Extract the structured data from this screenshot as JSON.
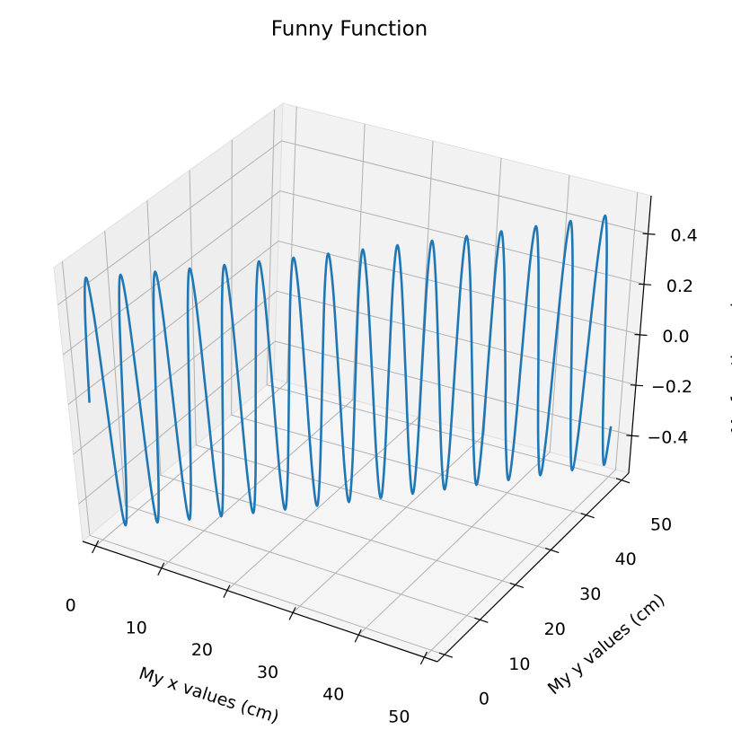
{
  "chart_data": {
    "type": "line3d",
    "title": "Funny Function",
    "xlabel": "My x values (cm)",
    "ylabel": "My y values (cm)",
    "zlabel": "My function values",
    "color": "#1f77b4",
    "grid": true,
    "xlim": [
      -2,
      52
    ],
    "ylim": [
      -2,
      52
    ],
    "zlim": [
      -0.55,
      0.55
    ],
    "xticks": [
      0,
      10,
      20,
      30,
      40,
      50
    ],
    "yticks": [
      0,
      10,
      20,
      30,
      40,
      50
    ],
    "zticks": [
      {
        "value": -0.4,
        "label": "−0.4"
      },
      {
        "value": -0.2,
        "label": "−0.2"
      },
      {
        "value": 0,
        "label": "0.0"
      },
      0.2,
      0.4
    ],
    "x": [
      0,
      0.39,
      0.79,
      1.18,
      1.57,
      1.96,
      2.36,
      2.75,
      3.14,
      3.53,
      3.93,
      4.32,
      4.71,
      5.11,
      5.5,
      5.89,
      6.28,
      6.68,
      7.07,
      7.46,
      7.85,
      8.25,
      8.64,
      9.03,
      9.42,
      9.82,
      10.21,
      10.6,
      11.0,
      11.39,
      11.78,
      12.17,
      12.57,
      12.96,
      13.35,
      13.74,
      14.14,
      14.53,
      14.92,
      15.32,
      15.71,
      16.1,
      16.49,
      16.89,
      17.28,
      17.67,
      18.06,
      18.46,
      18.85,
      19.24,
      19.63,
      20.03,
      20.42,
      20.81,
      21.21,
      21.6,
      21.99,
      22.38,
      22.78,
      23.17,
      23.56,
      23.95,
      24.35,
      24.74,
      25.13,
      25.53,
      25.92,
      26.31,
      26.7,
      27.1,
      27.49,
      27.88,
      28.27,
      28.67,
      29.06,
      29.45,
      29.85,
      30.24,
      30.63,
      31.02,
      31.42,
      31.81,
      32.2,
      32.59,
      32.99,
      33.38,
      33.77,
      34.16,
      34.56,
      34.95,
      35.34,
      35.74,
      36.13,
      36.52,
      36.91,
      37.31,
      37.7,
      38.09,
      38.48,
      38.88,
      39.27,
      39.66,
      40.06,
      40.45,
      40.84,
      41.23,
      41.63,
      42.02,
      42.41,
      42.8,
      43.2,
      43.59,
      43.98,
      44.38,
      44.77,
      45.16,
      45.55,
      45.95,
      46.34,
      46.73,
      47.12,
      47.52,
      47.91,
      48.3,
      48.69,
      49.09,
      49.48,
      49.87
    ],
    "y": [
      0,
      0.39,
      0.79,
      1.18,
      1.57,
      1.96,
      2.36,
      2.75,
      3.14,
      3.53,
      3.93,
      4.32,
      4.71,
      5.11,
      5.5,
      5.89,
      6.28,
      6.68,
      7.07,
      7.46,
      7.85,
      8.25,
      8.64,
      9.03,
      9.42,
      9.82,
      10.21,
      10.6,
      11.0,
      11.39,
      11.78,
      12.17,
      12.57,
      12.96,
      13.35,
      13.74,
      14.14,
      14.53,
      14.92,
      15.32,
      15.71,
      16.1,
      16.49,
      16.89,
      17.28,
      17.67,
      18.06,
      18.46,
      18.85,
      19.24,
      19.63,
      20.03,
      20.42,
      20.81,
      21.21,
      21.6,
      21.99,
      22.38,
      22.78,
      23.17,
      23.56,
      23.95,
      24.35,
      24.74,
      25.13,
      25.53,
      25.92,
      26.31,
      26.7,
      27.1,
      27.49,
      27.88,
      28.27,
      28.67,
      29.06,
      29.45,
      29.85,
      30.24,
      30.63,
      31.02,
      31.42,
      31.81,
      32.2,
      32.59,
      32.99,
      33.38,
      33.77,
      34.16,
      34.56,
      34.95,
      35.34,
      35.74,
      36.13,
      36.52,
      36.91,
      37.31,
      37.7,
      38.09,
      38.48,
      38.88,
      39.27,
      39.66,
      40.06,
      40.45,
      40.84,
      41.23,
      41.63,
      42.02,
      42.41,
      42.8,
      43.2,
      43.59,
      43.98,
      44.38,
      44.77,
      45.16,
      45.55,
      45.95,
      46.34,
      46.73,
      47.12,
      47.52,
      47.91,
      48.3,
      48.69,
      49.09,
      49.48,
      49.87
    ],
    "z": [
      0,
      0.35,
      0.5,
      0.35,
      0,
      -0.35,
      -0.5,
      -0.35,
      0,
      0.35,
      0.5,
      0.35,
      0,
      -0.35,
      -0.5,
      -0.35,
      0,
      0.35,
      0.5,
      0.35,
      0,
      -0.35,
      -0.5,
      -0.35,
      0,
      0.35,
      0.5,
      0.35,
      0,
      -0.35,
      -0.5,
      -0.35,
      0,
      0.35,
      0.5,
      0.35,
      0,
      -0.35,
      -0.5,
      -0.35,
      0,
      0.35,
      0.5,
      0.35,
      0,
      -0.35,
      -0.5,
      -0.35,
      0,
      0.35,
      0.5,
      0.35,
      0,
      -0.35,
      -0.5,
      -0.35,
      0,
      0.35,
      0.5,
      0.35,
      0,
      -0.35,
      -0.5,
      -0.35,
      0,
      0.35,
      0.5,
      0.35,
      0,
      -0.35,
      -0.5,
      -0.35,
      0,
      0.35,
      0.5,
      0.35,
      0,
      -0.35,
      -0.5,
      -0.35,
      0,
      0.35,
      0.5,
      0.35,
      0,
      -0.35,
      -0.5,
      -0.35,
      0,
      0.35,
      0.5,
      0.35,
      0,
      -0.35,
      -0.5,
      -0.35,
      0,
      0.35,
      0.5,
      0.35,
      0,
      -0.35,
      -0.5,
      -0.35,
      0,
      0.35,
      0.5,
      0.35,
      0,
      -0.35,
      -0.5,
      -0.35,
      0,
      0.35,
      0.5,
      0.35,
      0,
      -0.35,
      -0.5,
      -0.35,
      0,
      0.35,
      0.5,
      0.35,
      0,
      -0.35,
      -0.5,
      -0.35
    ]
  }
}
